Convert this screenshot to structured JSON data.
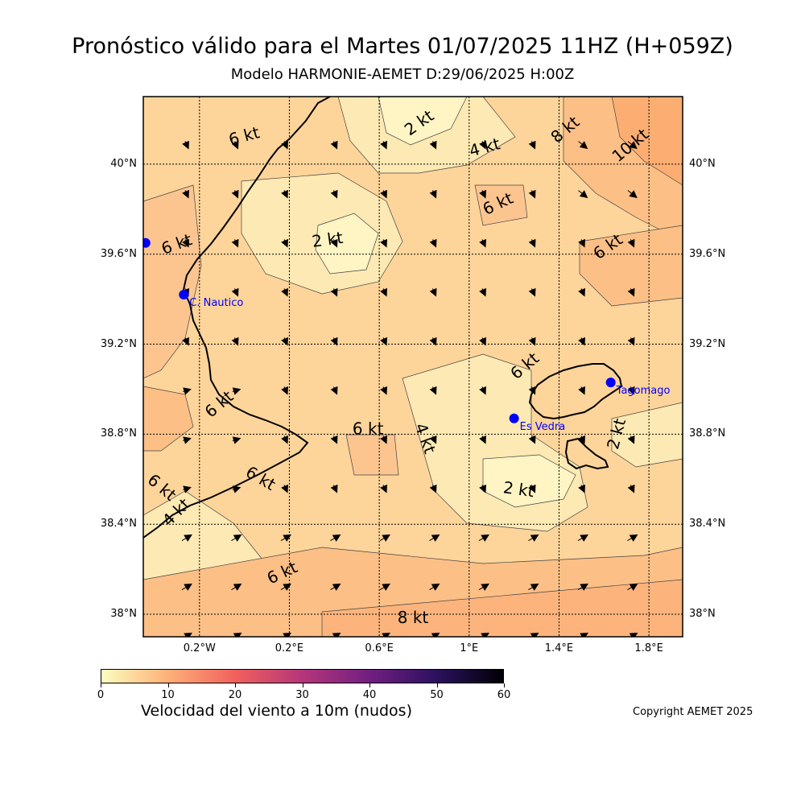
{
  "header": {
    "title": "Pronóstico válido para el Martes 01/07/2025 11HZ (H+059Z)",
    "subtitle": "Modelo HARMONIE-AEMET D:29/06/2025 H:00Z"
  },
  "map": {
    "lat_range": [
      37.9,
      40.3
    ],
    "lon_range": [
      -0.45,
      1.95
    ],
    "lat_ticks": [
      "40°N",
      "39.6°N",
      "39.2°N",
      "38.8°N",
      "38.4°N",
      "38°N"
    ],
    "lat_values": [
      40.0,
      39.6,
      39.2,
      38.8,
      38.4,
      38.0
    ],
    "lon_ticks": [
      "0.2°W",
      "0.2°E",
      "0.6°E",
      "1°E",
      "1.4°E",
      "1.8°E"
    ],
    "lon_values": [
      -0.2,
      0.2,
      0.6,
      1.0,
      1.4,
      1.8
    ],
    "contour_labels": [
      {
        "text": "6 kt",
        "lon": 0.0,
        "lat": 40.12,
        "rot": -15
      },
      {
        "text": "2 kt",
        "lon": 0.78,
        "lat": 40.18,
        "rot": -35
      },
      {
        "text": "4 kt",
        "lon": 1.07,
        "lat": 40.07,
        "rot": -15
      },
      {
        "text": "8 kt",
        "lon": 1.43,
        "lat": 40.15,
        "rot": -40
      },
      {
        "text": "10 kt",
        "lon": 1.72,
        "lat": 40.08,
        "rot": -40
      },
      {
        "text": "6 kt",
        "lon": 1.13,
        "lat": 39.82,
        "rot": -25
      },
      {
        "text": "6 kt",
        "lon": -0.3,
        "lat": 39.64,
        "rot": -20
      },
      {
        "text": "2 kt",
        "lon": 0.37,
        "lat": 39.66,
        "rot": -8
      },
      {
        "text": "6 kt",
        "lon": 1.62,
        "lat": 39.63,
        "rot": -35
      },
      {
        "text": "6 kt",
        "lon": 1.25,
        "lat": 39.1,
        "rot": -40
      },
      {
        "text": "6 kt",
        "lon": -0.11,
        "lat": 38.93,
        "rot": -40
      },
      {
        "text": "6 kt",
        "lon": 0.55,
        "lat": 38.82,
        "rot": 0
      },
      {
        "text": "4 kt",
        "lon": 0.8,
        "lat": 38.78,
        "rot": 70
      },
      {
        "text": "2 kt",
        "lon": 1.66,
        "lat": 38.8,
        "rot": -75
      },
      {
        "text": "6 kt",
        "lon": -0.37,
        "lat": 38.56,
        "rot": 40
      },
      {
        "text": "6 kt",
        "lon": 0.07,
        "lat": 38.6,
        "rot": 30
      },
      {
        "text": "4 kt",
        "lon": -0.3,
        "lat": 38.45,
        "rot": -45
      },
      {
        "text": "2 kt",
        "lon": 1.22,
        "lat": 38.55,
        "rot": 8
      },
      {
        "text": "6 kt",
        "lon": 0.17,
        "lat": 38.18,
        "rot": -25
      },
      {
        "text": "8 kt",
        "lon": 0.75,
        "lat": 37.98,
        "rot": 0
      }
    ],
    "stations": [
      {
        "name": "",
        "lon": -0.44,
        "lat": 39.65
      },
      {
        "name": "C. Nautico",
        "lon": -0.27,
        "lat": 39.42
      },
      {
        "name": "Tagomago",
        "lon": 1.63,
        "lat": 39.03
      },
      {
        "name": "Es Vedra",
        "lon": 1.2,
        "lat": 38.87
      }
    ],
    "station_color": "#0000ff"
  },
  "colorbar": {
    "label": "Velocidad del viento a 10m (nudos)",
    "ticks": [
      "0",
      "10",
      "20",
      "30",
      "40",
      "50",
      "60"
    ],
    "colors": [
      "#fcfdbf",
      "#feb078",
      "#f1605d",
      "#b5367a",
      "#721f81",
      "#2c115f",
      "#000004"
    ]
  },
  "footer": {
    "copyright": "Copyright AEMET 2025"
  }
}
